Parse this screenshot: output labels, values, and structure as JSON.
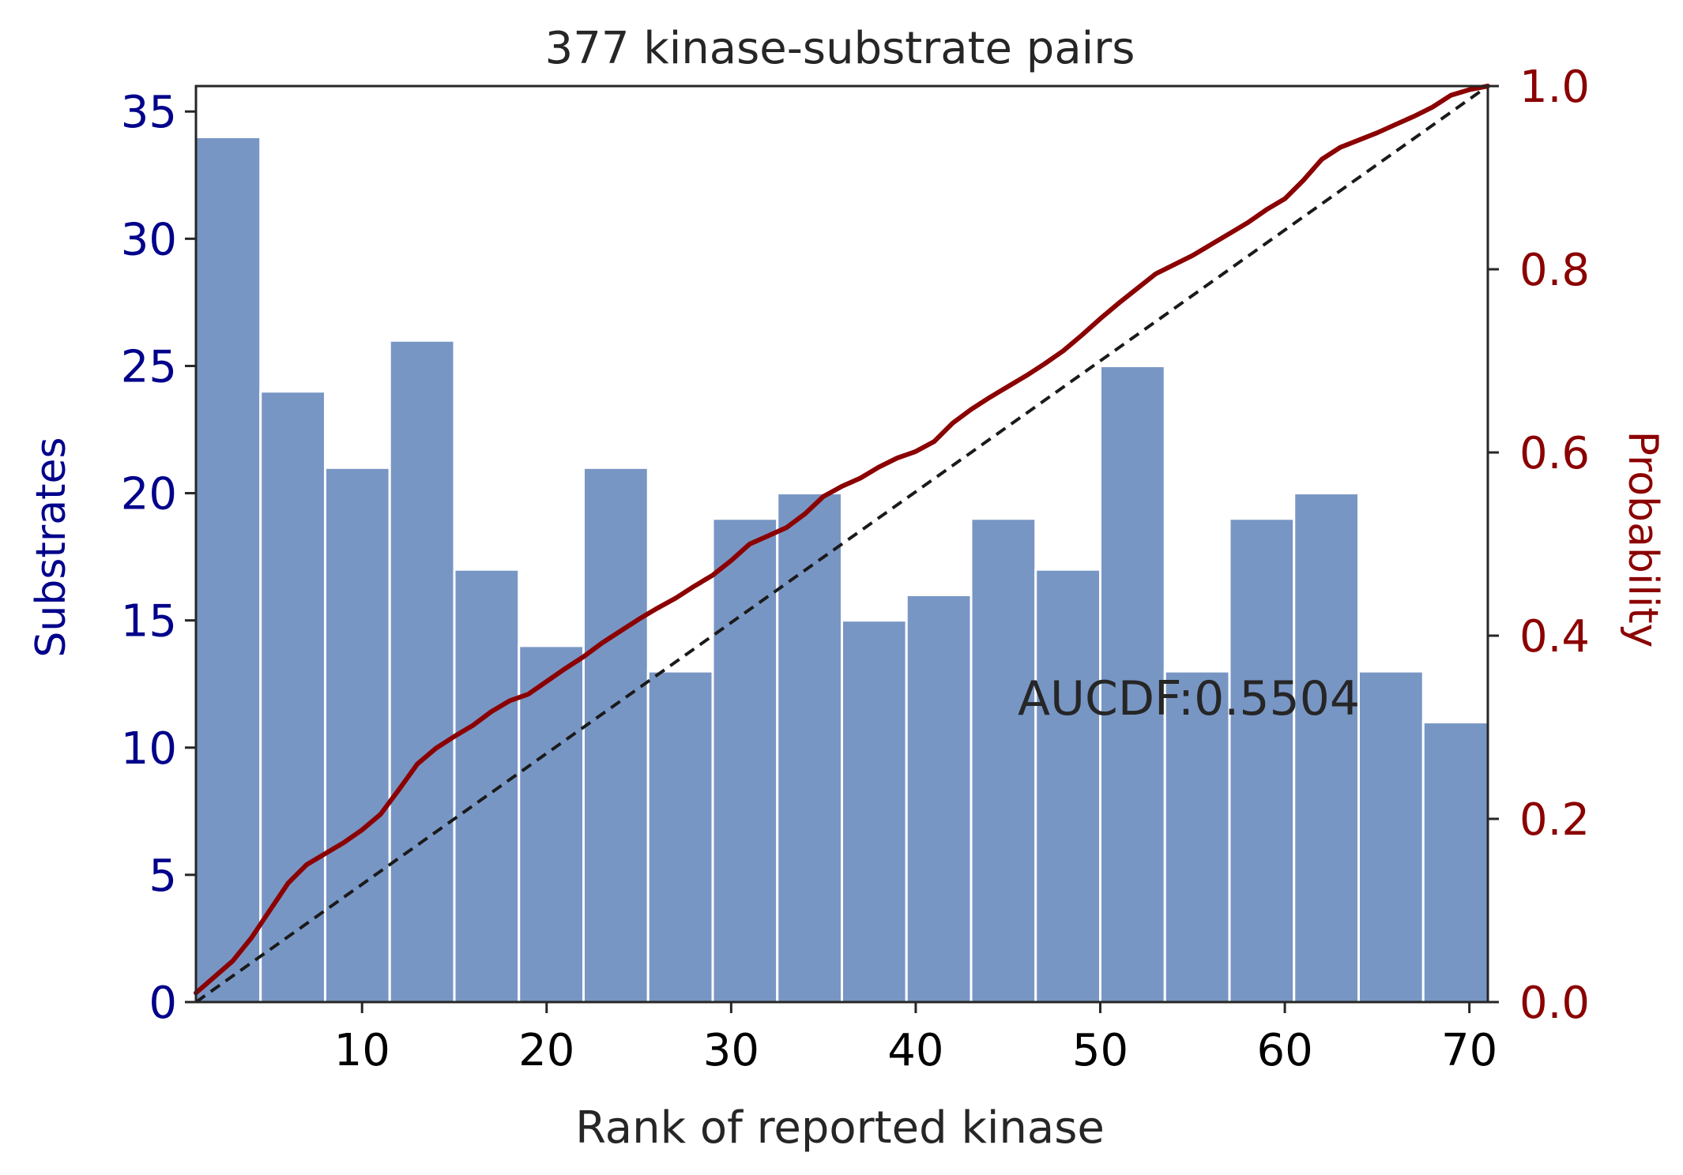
{
  "chart_data": {
    "type": "bar",
    "title": "377 kinase-substrate pairs",
    "xlabel": "Rank of reported kinase",
    "ylabel_left": "Substrates",
    "ylabel_right": "Probability",
    "annotation": "AUCDF:0.5504",
    "xlim": [
      1,
      71
    ],
    "ylim_left": [
      0,
      36
    ],
    "ylim_right": [
      0,
      1
    ],
    "x_ticks": [
      "10",
      "20",
      "30",
      "40",
      "50",
      "60",
      "70"
    ],
    "y_left_ticks": [
      "0",
      "5",
      "10",
      "15",
      "20",
      "25",
      "30",
      "35"
    ],
    "y_right_ticks": [
      "0.0",
      "0.2",
      "0.4",
      "0.6",
      "0.8",
      "1.0"
    ],
    "bins": [
      {
        "start": 1,
        "end": 4.5,
        "value": 34
      },
      {
        "start": 4.5,
        "end": 8,
        "value": 24
      },
      {
        "start": 8,
        "end": 11.5,
        "value": 21
      },
      {
        "start": 11.5,
        "end": 15,
        "value": 26
      },
      {
        "start": 15,
        "end": 18.5,
        "value": 17
      },
      {
        "start": 18.5,
        "end": 22,
        "value": 14
      },
      {
        "start": 22,
        "end": 25.5,
        "value": 21
      },
      {
        "start": 25.5,
        "end": 29,
        "value": 13
      },
      {
        "start": 29,
        "end": 32.5,
        "value": 19
      },
      {
        "start": 32.5,
        "end": 36,
        "value": 20
      },
      {
        "start": 36,
        "end": 39.5,
        "value": 15
      },
      {
        "start": 39.5,
        "end": 43,
        "value": 16
      },
      {
        "start": 43,
        "end": 46.5,
        "value": 19
      },
      {
        "start": 46.5,
        "end": 50,
        "value": 17
      },
      {
        "start": 50,
        "end": 53.5,
        "value": 25
      },
      {
        "start": 53.5,
        "end": 57,
        "value": 13
      },
      {
        "start": 57,
        "end": 60.5,
        "value": 19
      },
      {
        "start": 60.5,
        "end": 64,
        "value": 20
      },
      {
        "start": 64,
        "end": 67.5,
        "value": 13
      },
      {
        "start": 67.5,
        "end": 71,
        "value": 11
      }
    ],
    "cdf": {
      "x": [
        1,
        3,
        4,
        5,
        6,
        7,
        8,
        9,
        10,
        11,
        12,
        13,
        14,
        15,
        16,
        17,
        18,
        19,
        20,
        21,
        22,
        23,
        24,
        25,
        26,
        27,
        28,
        29,
        30,
        31,
        32,
        33,
        34,
        35,
        36,
        37,
        38,
        39,
        40,
        41,
        42,
        43,
        44,
        45,
        46,
        47,
        48,
        49,
        50,
        51,
        52,
        53,
        54,
        55,
        56,
        57,
        58,
        59,
        60,
        61,
        62,
        63,
        64,
        65,
        66,
        67,
        68,
        69,
        70,
        71
      ],
      "y": [
        0.01,
        0.045,
        0.07,
        0.1,
        0.13,
        0.15,
        0.162,
        0.174,
        0.188,
        0.205,
        0.232,
        0.26,
        0.277,
        0.29,
        0.302,
        0.317,
        0.329,
        0.336,
        0.35,
        0.364,
        0.377,
        0.392,
        0.405,
        0.418,
        0.43,
        0.441,
        0.454,
        0.466,
        0.482,
        0.5,
        0.509,
        0.518,
        0.533,
        0.552,
        0.563,
        0.572,
        0.584,
        0.594,
        0.601,
        0.612,
        0.632,
        0.647,
        0.66,
        0.672,
        0.684,
        0.697,
        0.711,
        0.728,
        0.746,
        0.763,
        0.779,
        0.795,
        0.805,
        0.815,
        0.827,
        0.839,
        0.851,
        0.865,
        0.877,
        0.897,
        0.92,
        0.933,
        0.941,
        0.949,
        0.958,
        0.967,
        0.977,
        0.99,
        0.996,
        1.0
      ],
      "color": "#8B0000"
    },
    "reference_line": {
      "x": [
        1,
        71
      ],
      "y": [
        0,
        1
      ],
      "style": "dashed",
      "color": "#1a1a1a"
    },
    "colors": {
      "bar_fill": "#7896C4",
      "left_axis": "#00008B",
      "right_axis": "#8B0000"
    },
    "grid": false,
    "legend": "none"
  }
}
